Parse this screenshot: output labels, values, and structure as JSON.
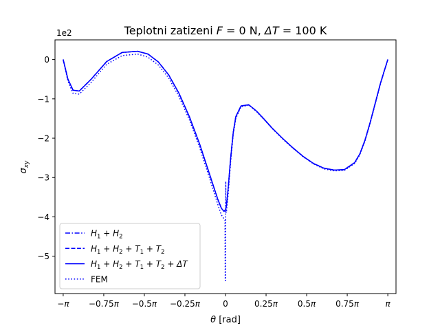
{
  "chart_data": {
    "type": "line",
    "title": "Teplotni zatizeni  F = 0 N, ΔT = 100 K",
    "xlabel": "θ [rad]",
    "ylabel": "σxy",
    "y_scale_label": "1e2",
    "xlim": [
      -3.3,
      3.3
    ],
    "ylim": [
      -5.95,
      0.5
    ],
    "xticks": [
      {
        "value": -3.14159,
        "label": "−π"
      },
      {
        "value": -2.35619,
        "label": "−0.75π"
      },
      {
        "value": -1.5708,
        "label": "−0.5π"
      },
      {
        "value": -0.7854,
        "label": "−0.25π"
      },
      {
        "value": 0,
        "label": "0"
      },
      {
        "value": 0.7854,
        "label": "0.25π"
      },
      {
        "value": 1.5708,
        "label": "0.5π"
      },
      {
        "value": 2.35619,
        "label": "0.75π"
      },
      {
        "value": 3.14159,
        "label": "π"
      }
    ],
    "yticks": [
      {
        "value": 0,
        "label": "0"
      },
      {
        "value": -1,
        "label": "−1"
      },
      {
        "value": -2,
        "label": "−2"
      },
      {
        "value": -3,
        "label": "−3"
      },
      {
        "value": -4,
        "label": "−4"
      },
      {
        "value": -5,
        "label": "−5"
      }
    ],
    "grid": false,
    "legend_position": "lower-left",
    "color": "#0000ff",
    "series": [
      {
        "name": "H1 + H2",
        "name_parts": [
          [
            "H",
            ""
          ],
          [
            "1",
            "sub"
          ],
          [
            " + ",
            ""
          ],
          [
            "H",
            ""
          ],
          [
            "2",
            "sub"
          ]
        ],
        "style": "dashdot",
        "x": [
          -3.1416,
          -3.05,
          -2.95,
          -2.83,
          -2.6,
          -2.3,
          -2.0,
          -1.7,
          -1.5,
          -1.3,
          -1.1,
          -0.9,
          -0.7,
          -0.5,
          -0.3,
          -0.15,
          -0.08,
          -0.03,
          0,
          0.02,
          0.05,
          0.1,
          0.15,
          0.2,
          0.3,
          0.45,
          0.6,
          0.75,
          0.9,
          1.1,
          1.3,
          1.5,
          1.7,
          1.9,
          2.1,
          2.3,
          2.5,
          2.6,
          2.7,
          2.8,
          2.9,
          3.0,
          3.07,
          3.1416
        ],
        "y": [
          0,
          -0.5,
          -0.78,
          -0.8,
          -0.5,
          -0.05,
          0.18,
          0.21,
          0.14,
          -0.06,
          -0.39,
          -0.86,
          -1.45,
          -2.15,
          -2.95,
          -3.55,
          -3.78,
          -3.86,
          -3.82,
          -3.7,
          -3.3,
          -2.5,
          -1.85,
          -1.45,
          -1.18,
          -1.15,
          -1.31,
          -1.52,
          -1.74,
          -2.0,
          -2.24,
          -2.46,
          -2.64,
          -2.76,
          -2.81,
          -2.8,
          -2.62,
          -2.4,
          -2.05,
          -1.6,
          -1.1,
          -0.6,
          -0.3,
          0
        ]
      },
      {
        "name": "H1 + H2 + T1 + T2",
        "name_parts": [
          [
            "H",
            ""
          ],
          [
            "1",
            "sub"
          ],
          [
            " + ",
            ""
          ],
          [
            "H",
            ""
          ],
          [
            "2",
            "sub"
          ],
          [
            " + ",
            ""
          ],
          [
            "T",
            ""
          ],
          [
            "1",
            "sub"
          ],
          [
            " + ",
            ""
          ],
          [
            "T",
            ""
          ],
          [
            "2",
            "sub"
          ]
        ],
        "style": "dashed",
        "x": [
          -3.1416,
          -3.05,
          -2.95,
          -2.83,
          -2.6,
          -2.3,
          -2.0,
          -1.7,
          -1.5,
          -1.3,
          -1.1,
          -0.9,
          -0.7,
          -0.5,
          -0.3,
          -0.15,
          -0.08,
          -0.03,
          0,
          0.02,
          0.05,
          0.1,
          0.15,
          0.2,
          0.3,
          0.45,
          0.6,
          0.75,
          0.9,
          1.1,
          1.3,
          1.5,
          1.7,
          1.9,
          2.1,
          2.3,
          2.5,
          2.6,
          2.7,
          2.8,
          2.9,
          3.0,
          3.07,
          3.1416
        ],
        "y": [
          0,
          -0.5,
          -0.78,
          -0.8,
          -0.5,
          -0.05,
          0.18,
          0.21,
          0.14,
          -0.06,
          -0.39,
          -0.86,
          -1.45,
          -2.15,
          -2.95,
          -3.55,
          -3.78,
          -3.86,
          -3.82,
          -3.7,
          -3.3,
          -2.5,
          -1.85,
          -1.45,
          -1.18,
          -1.15,
          -1.31,
          -1.52,
          -1.74,
          -2.0,
          -2.24,
          -2.46,
          -2.64,
          -2.76,
          -2.81,
          -2.8,
          -2.62,
          -2.4,
          -2.05,
          -1.6,
          -1.1,
          -0.6,
          -0.3,
          0
        ]
      },
      {
        "name": "H1 + H2 + T1 + T2 + ΔT",
        "name_parts": [
          [
            "H",
            ""
          ],
          [
            "1",
            "sub"
          ],
          [
            " + ",
            ""
          ],
          [
            "H",
            ""
          ],
          [
            "2",
            "sub"
          ],
          [
            " + ",
            ""
          ],
          [
            "T",
            ""
          ],
          [
            "1",
            "sub"
          ],
          [
            " + ",
            ""
          ],
          [
            "T",
            ""
          ],
          [
            "2",
            "sub"
          ],
          [
            " + ΔT",
            ""
          ]
        ],
        "style": "solid",
        "x": [
          -3.1416,
          -3.05,
          -2.95,
          -2.83,
          -2.6,
          -2.3,
          -2.0,
          -1.7,
          -1.5,
          -1.3,
          -1.1,
          -0.9,
          -0.7,
          -0.5,
          -0.3,
          -0.15,
          -0.08,
          -0.03,
          0,
          0.02,
          0.05,
          0.1,
          0.15,
          0.2,
          0.3,
          0.45,
          0.6,
          0.75,
          0.9,
          1.1,
          1.3,
          1.5,
          1.7,
          1.9,
          2.1,
          2.3,
          2.5,
          2.6,
          2.7,
          2.8,
          2.9,
          3.0,
          3.07,
          3.1416
        ],
        "y": [
          0,
          -0.5,
          -0.78,
          -0.8,
          -0.5,
          -0.05,
          0.18,
          0.21,
          0.14,
          -0.06,
          -0.39,
          -0.86,
          -1.45,
          -2.15,
          -2.95,
          -3.55,
          -3.78,
          -3.86,
          -3.82,
          -3.7,
          -3.3,
          -2.5,
          -1.85,
          -1.45,
          -1.18,
          -1.15,
          -1.31,
          -1.52,
          -1.74,
          -2.0,
          -2.24,
          -2.46,
          -2.64,
          -2.76,
          -2.81,
          -2.8,
          -2.62,
          -2.4,
          -2.05,
          -1.6,
          -1.1,
          -0.6,
          -0.3,
          0
        ]
      },
      {
        "name": "FEM",
        "name_parts": [
          [
            "FEM",
            ""
          ]
        ],
        "style": "dotted",
        "x": [
          -3.1416,
          -3.05,
          -2.95,
          -2.83,
          -2.6,
          -2.3,
          -2.0,
          -1.7,
          -1.5,
          -1.3,
          -1.1,
          -0.9,
          -0.7,
          -0.5,
          -0.3,
          -0.15,
          -0.08,
          -0.03,
          -0.01,
          -0.005,
          0,
          0.005,
          0.01,
          0.02,
          0.05,
          0.1,
          0.15,
          0.2,
          0.3,
          0.45,
          0.6,
          0.75,
          0.9,
          1.1,
          1.3,
          1.5,
          1.7,
          1.9,
          2.1,
          2.3,
          2.5,
          2.6,
          2.7,
          2.8,
          2.9,
          3.0,
          3.07,
          3.1416
        ],
        "y": [
          0,
          -0.55,
          -0.86,
          -0.88,
          -0.58,
          -0.12,
          0.1,
          0.14,
          0.06,
          -0.14,
          -0.47,
          -0.94,
          -1.53,
          -2.24,
          -3.05,
          -3.68,
          -3.95,
          -4.05,
          -4.08,
          -5.62,
          -5.62,
          -3.1,
          -3.9,
          -3.86,
          -3.45,
          -2.6,
          -1.9,
          -1.5,
          -1.2,
          -1.16,
          -1.32,
          -1.53,
          -1.75,
          -2.01,
          -2.25,
          -2.47,
          -2.65,
          -2.78,
          -2.83,
          -2.82,
          -2.64,
          -2.42,
          -2.07,
          -1.62,
          -1.12,
          -0.62,
          -0.31,
          0
        ]
      }
    ]
  }
}
